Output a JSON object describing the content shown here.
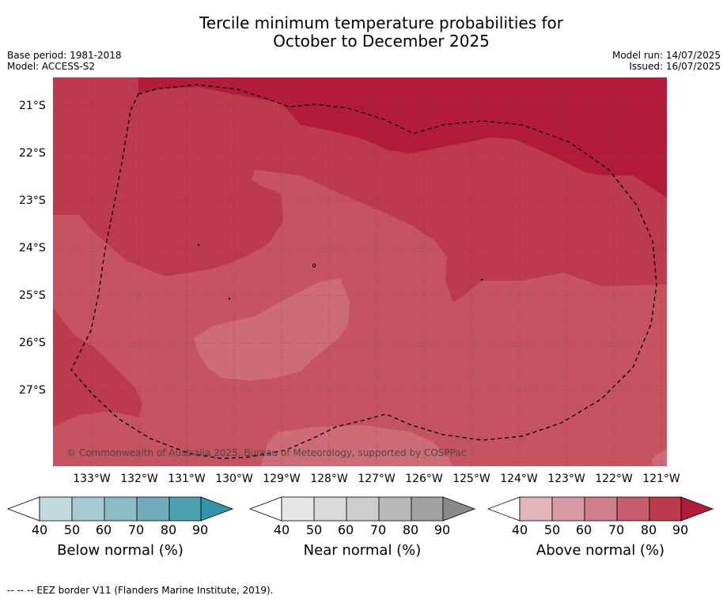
{
  "title_line1": "Tercile minimum temperature probabilities for",
  "title_line2": "October to December 2025",
  "base_period": "Base period: 1981-2018",
  "model": "Model: ACCESS-S2",
  "model_run": "Model run: 14/07/2025",
  "issued": "Issued: 16/07/2025",
  "map": {
    "lat_labels": [
      "21°S",
      "22°S",
      "23°S",
      "24°S",
      "25°S",
      "26°S",
      "27°S"
    ],
    "lon_labels": [
      "133°W",
      "132°W",
      "131°W",
      "130°W",
      "129°W",
      "128°W",
      "127°W",
      "126°W",
      "125°W",
      "124°W",
      "123°W",
      "122°W",
      "121°W"
    ],
    "copyright": "© Commonwealth of Australia 2025, Bureau of Meteorology, supported by COSPPac",
    "colors": {
      "above_90": "#b31b3a",
      "above_80": "#bd3a4d",
      "above_70": "#c65460",
      "above_60": "#cd6b76"
    }
  },
  "legends": [
    {
      "title": "Below normal (%)",
      "ticks": [
        "40",
        "50",
        "60",
        "70",
        "80",
        "90"
      ],
      "colors": [
        "#c2d9df",
        "#a7cbd3",
        "#8cbcc6",
        "#6fadba",
        "#4da1b1",
        "#2f96a9"
      ]
    },
    {
      "title": "Near normal (%)",
      "ticks": [
        "40",
        "50",
        "60",
        "70",
        "80",
        "90"
      ],
      "colors": [
        "#e6e6e6",
        "#d9d9d9",
        "#cccccc",
        "#b8b8b8",
        "#a2a2a2",
        "#8a8a8a"
      ]
    },
    {
      "title": "Above normal (%)",
      "ticks": [
        "40",
        "50",
        "60",
        "70",
        "80",
        "90"
      ],
      "colors": [
        "#e3b6bd",
        "#d99aa3",
        "#cf7f89",
        "#c65c6b",
        "#bd3a4d",
        "#b31b3a"
      ]
    }
  ],
  "footnote": "-- -- -- EEZ border V11 (Flanders Marine Institute, 2019)."
}
